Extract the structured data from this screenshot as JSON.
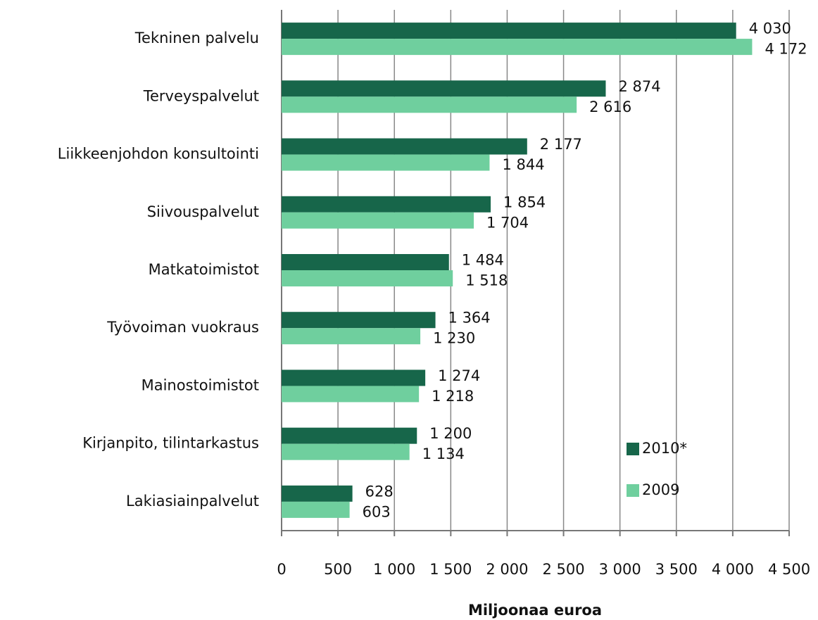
{
  "chart_data": {
    "type": "bar",
    "orientation": "horizontal",
    "xlabel": "Miljoonaa euroa",
    "categories": [
      "Tekninen palvelu",
      "Terveyspalvelut",
      "Liikkeenjohdon konsultointi",
      "Siivouspalvelut",
      "Matkatoimistot",
      "Työvoiman vuokraus",
      "Mainostoimistot",
      "Kirjanpito, tilintarkastus",
      "Lakiasiainpalvelut"
    ],
    "series": [
      {
        "name": "2010*",
        "color": "#17664a",
        "values": [
          4030,
          2874,
          2177,
          1854,
          1484,
          1364,
          1274,
          1200,
          628
        ],
        "value_labels": [
          "4 030",
          "2 874",
          "2 177",
          "1 854",
          "1 484",
          "1 364",
          "1 274",
          "1 200",
          "628"
        ]
      },
      {
        "name": "2009",
        "color": "#6fcf9e",
        "values": [
          4172,
          2616,
          1844,
          1704,
          1518,
          1230,
          1218,
          1134,
          603
        ],
        "value_labels": [
          "4 172",
          "2 616",
          "1 844",
          "1 704",
          "1 518",
          "1 230",
          "1 218",
          "1 134",
          "603"
        ]
      }
    ],
    "xlim": [
      0,
      4500
    ],
    "xticks": [
      0,
      500,
      {
        "value": 1000,
        "label": "1 000"
      },
      {
        "value": 1500,
        "label": "1 500"
      },
      {
        "value": 2000,
        "label": "2 000"
      },
      {
        "value": 2500,
        "label": "2 500"
      },
      {
        "value": 3000,
        "label": "3 000"
      },
      {
        "value": 3500,
        "label": "3 500"
      },
      {
        "value": 4000,
        "label": "4 000"
      },
      {
        "value": 4500,
        "label": "4 500"
      }
    ],
    "grid": true,
    "legend": "lower right"
  }
}
